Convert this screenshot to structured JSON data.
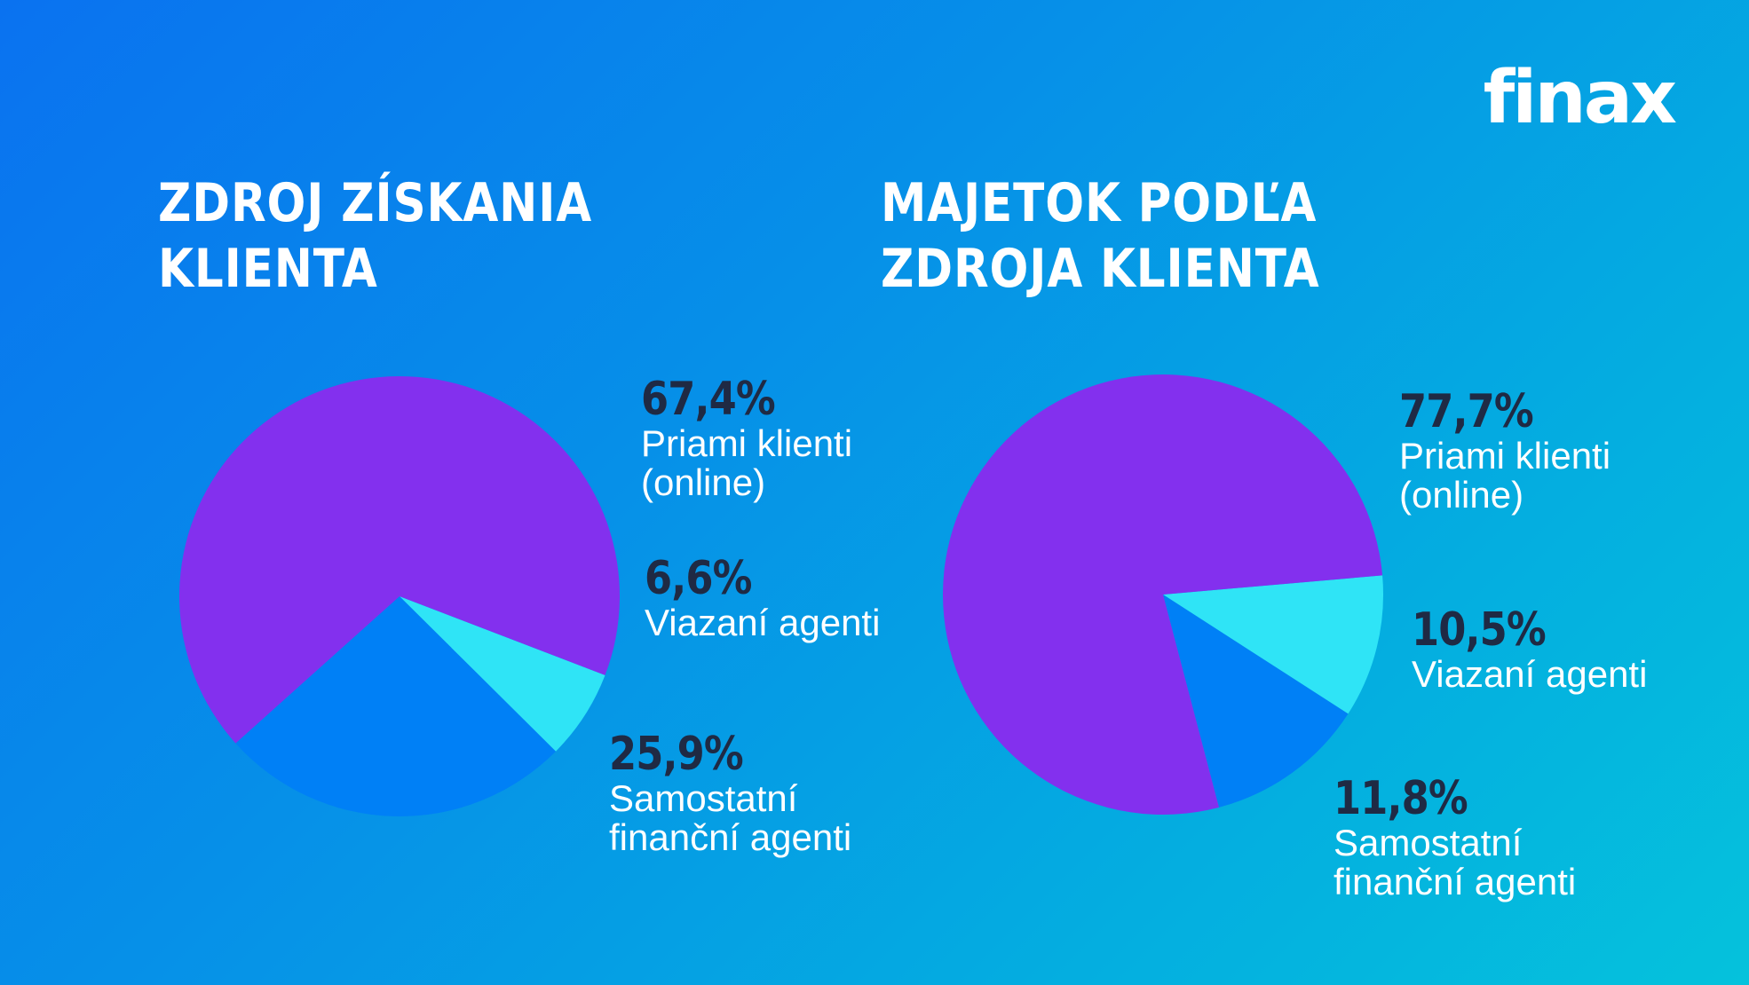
{
  "brand": {
    "logo_text": "finax"
  },
  "colors": {
    "purple": "#8330ee",
    "cyan": "#2fe4f6",
    "blue": "#0080f6",
    "pct_text": "#1f2a44"
  },
  "chart_data": [
    {
      "type": "pie",
      "title": "ZDROJ ZÍSKANIA KLIENTA",
      "title_lines": [
        "ZDROJ ZÍSKANIA",
        "KLIENTA"
      ],
      "categories": [
        "Priami klienti (online)",
        "Viazaní agenti",
        "Samostatní finanční agenti"
      ],
      "values": [
        67.4,
        6.6,
        25.9
      ],
      "value_labels": [
        "67,4%",
        "6,6%",
        "25,9%"
      ],
      "label_lines": [
        "Priami klienti\n(online)",
        "Viazaní agenti",
        "Samostatní\nfinanční agenti"
      ],
      "colors": [
        "#8330ee",
        "#2fe4f6",
        "#0080f6"
      ]
    },
    {
      "type": "pie",
      "title": "MAJETOK PODĽA ZDROJA KLIENTA",
      "title_lines": [
        "MAJETOK PODĽA",
        "ZDROJA KLIENTA"
      ],
      "categories": [
        "Priami klienti (online)",
        "Viazaní agenti",
        "Samostatní finanční agenti"
      ],
      "values": [
        77.7,
        10.5,
        11.8
      ],
      "value_labels": [
        "77,7%",
        "10,5%",
        "11,8%"
      ],
      "label_lines": [
        "Priami klienti\n(online)",
        "Viazaní agenti",
        "Samostatní\nfinanční agenti"
      ],
      "colors": [
        "#8330ee",
        "#2fe4f6",
        "#0080f6"
      ]
    }
  ]
}
